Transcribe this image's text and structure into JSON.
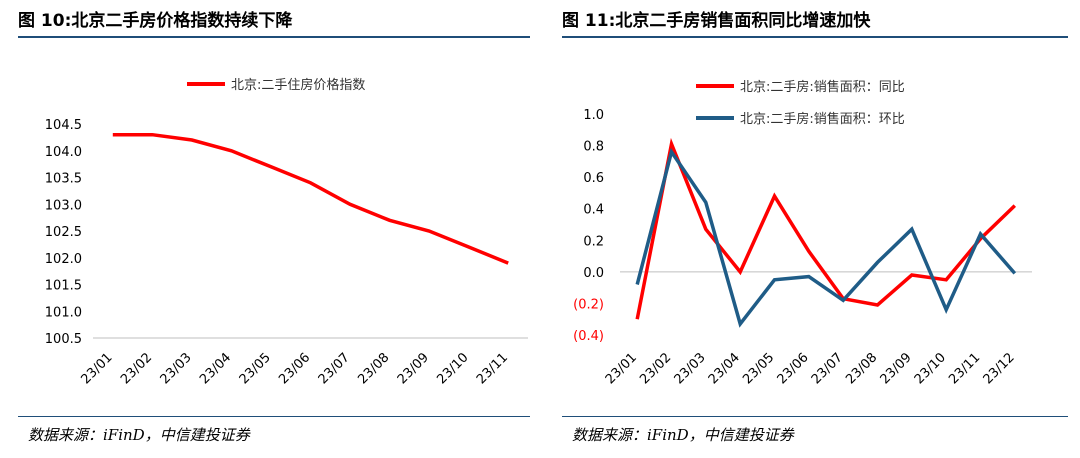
{
  "left_panel": {
    "title": "图 10:北京二手房价格指数持续下降",
    "source": "数据来源：iFinD，中信建投证券"
  },
  "right_panel": {
    "title": "图 11:北京二手房销售面积同比增速加快",
    "source": "数据来源：iFinD，中信建投证券"
  },
  "chart_data": [
    {
      "type": "line",
      "title": "",
      "xlabel": "",
      "ylabel": "",
      "x": [
        "23/01",
        "23/02",
        "23/03",
        "23/04",
        "23/05",
        "23/06",
        "23/07",
        "23/08",
        "23/09",
        "23/10",
        "23/11"
      ],
      "y_ticks": [
        "100.5",
        "101.0",
        "101.5",
        "102.0",
        "102.5",
        "103.0",
        "103.5",
        "104.0",
        "104.5"
      ],
      "ylim": [
        100.5,
        104.5
      ],
      "legend_position": "top-center",
      "series": [
        {
          "name": "北京:二手住房价格指数",
          "color": "#ff0000",
          "values": [
            104.3,
            104.3,
            104.2,
            104.0,
            103.7,
            103.4,
            103.0,
            102.7,
            102.5,
            102.2,
            101.9
          ]
        }
      ]
    },
    {
      "type": "line",
      "title": "",
      "xlabel": "",
      "ylabel": "",
      "x": [
        "23/01",
        "23/02",
        "23/03",
        "23/04",
        "23/05",
        "23/06",
        "23/07",
        "23/08",
        "23/09",
        "23/10",
        "23/11",
        "23/12"
      ],
      "y_ticks": [
        "1.0",
        "0.8",
        "0.6",
        "0.4",
        "0.2",
        "0.0",
        "(0.2)",
        "(0.4)"
      ],
      "ylim": [
        -0.4,
        1.0
      ],
      "legend_position": "top-center",
      "series": [
        {
          "name": "北京:二手房:销售面积：同比",
          "color": "#ff0000",
          "values": [
            -0.3,
            0.81,
            0.27,
            0.0,
            0.48,
            0.13,
            -0.17,
            -0.21,
            -0.02,
            -0.05,
            0.21,
            0.42
          ]
        },
        {
          "name": "北京:二手房:销售面积：环比",
          "color": "#1f5c87",
          "values": [
            -0.08,
            0.76,
            0.44,
            -0.33,
            -0.05,
            -0.03,
            -0.18,
            0.06,
            0.27,
            -0.24,
            0.24,
            -0.01
          ]
        }
      ]
    }
  ]
}
